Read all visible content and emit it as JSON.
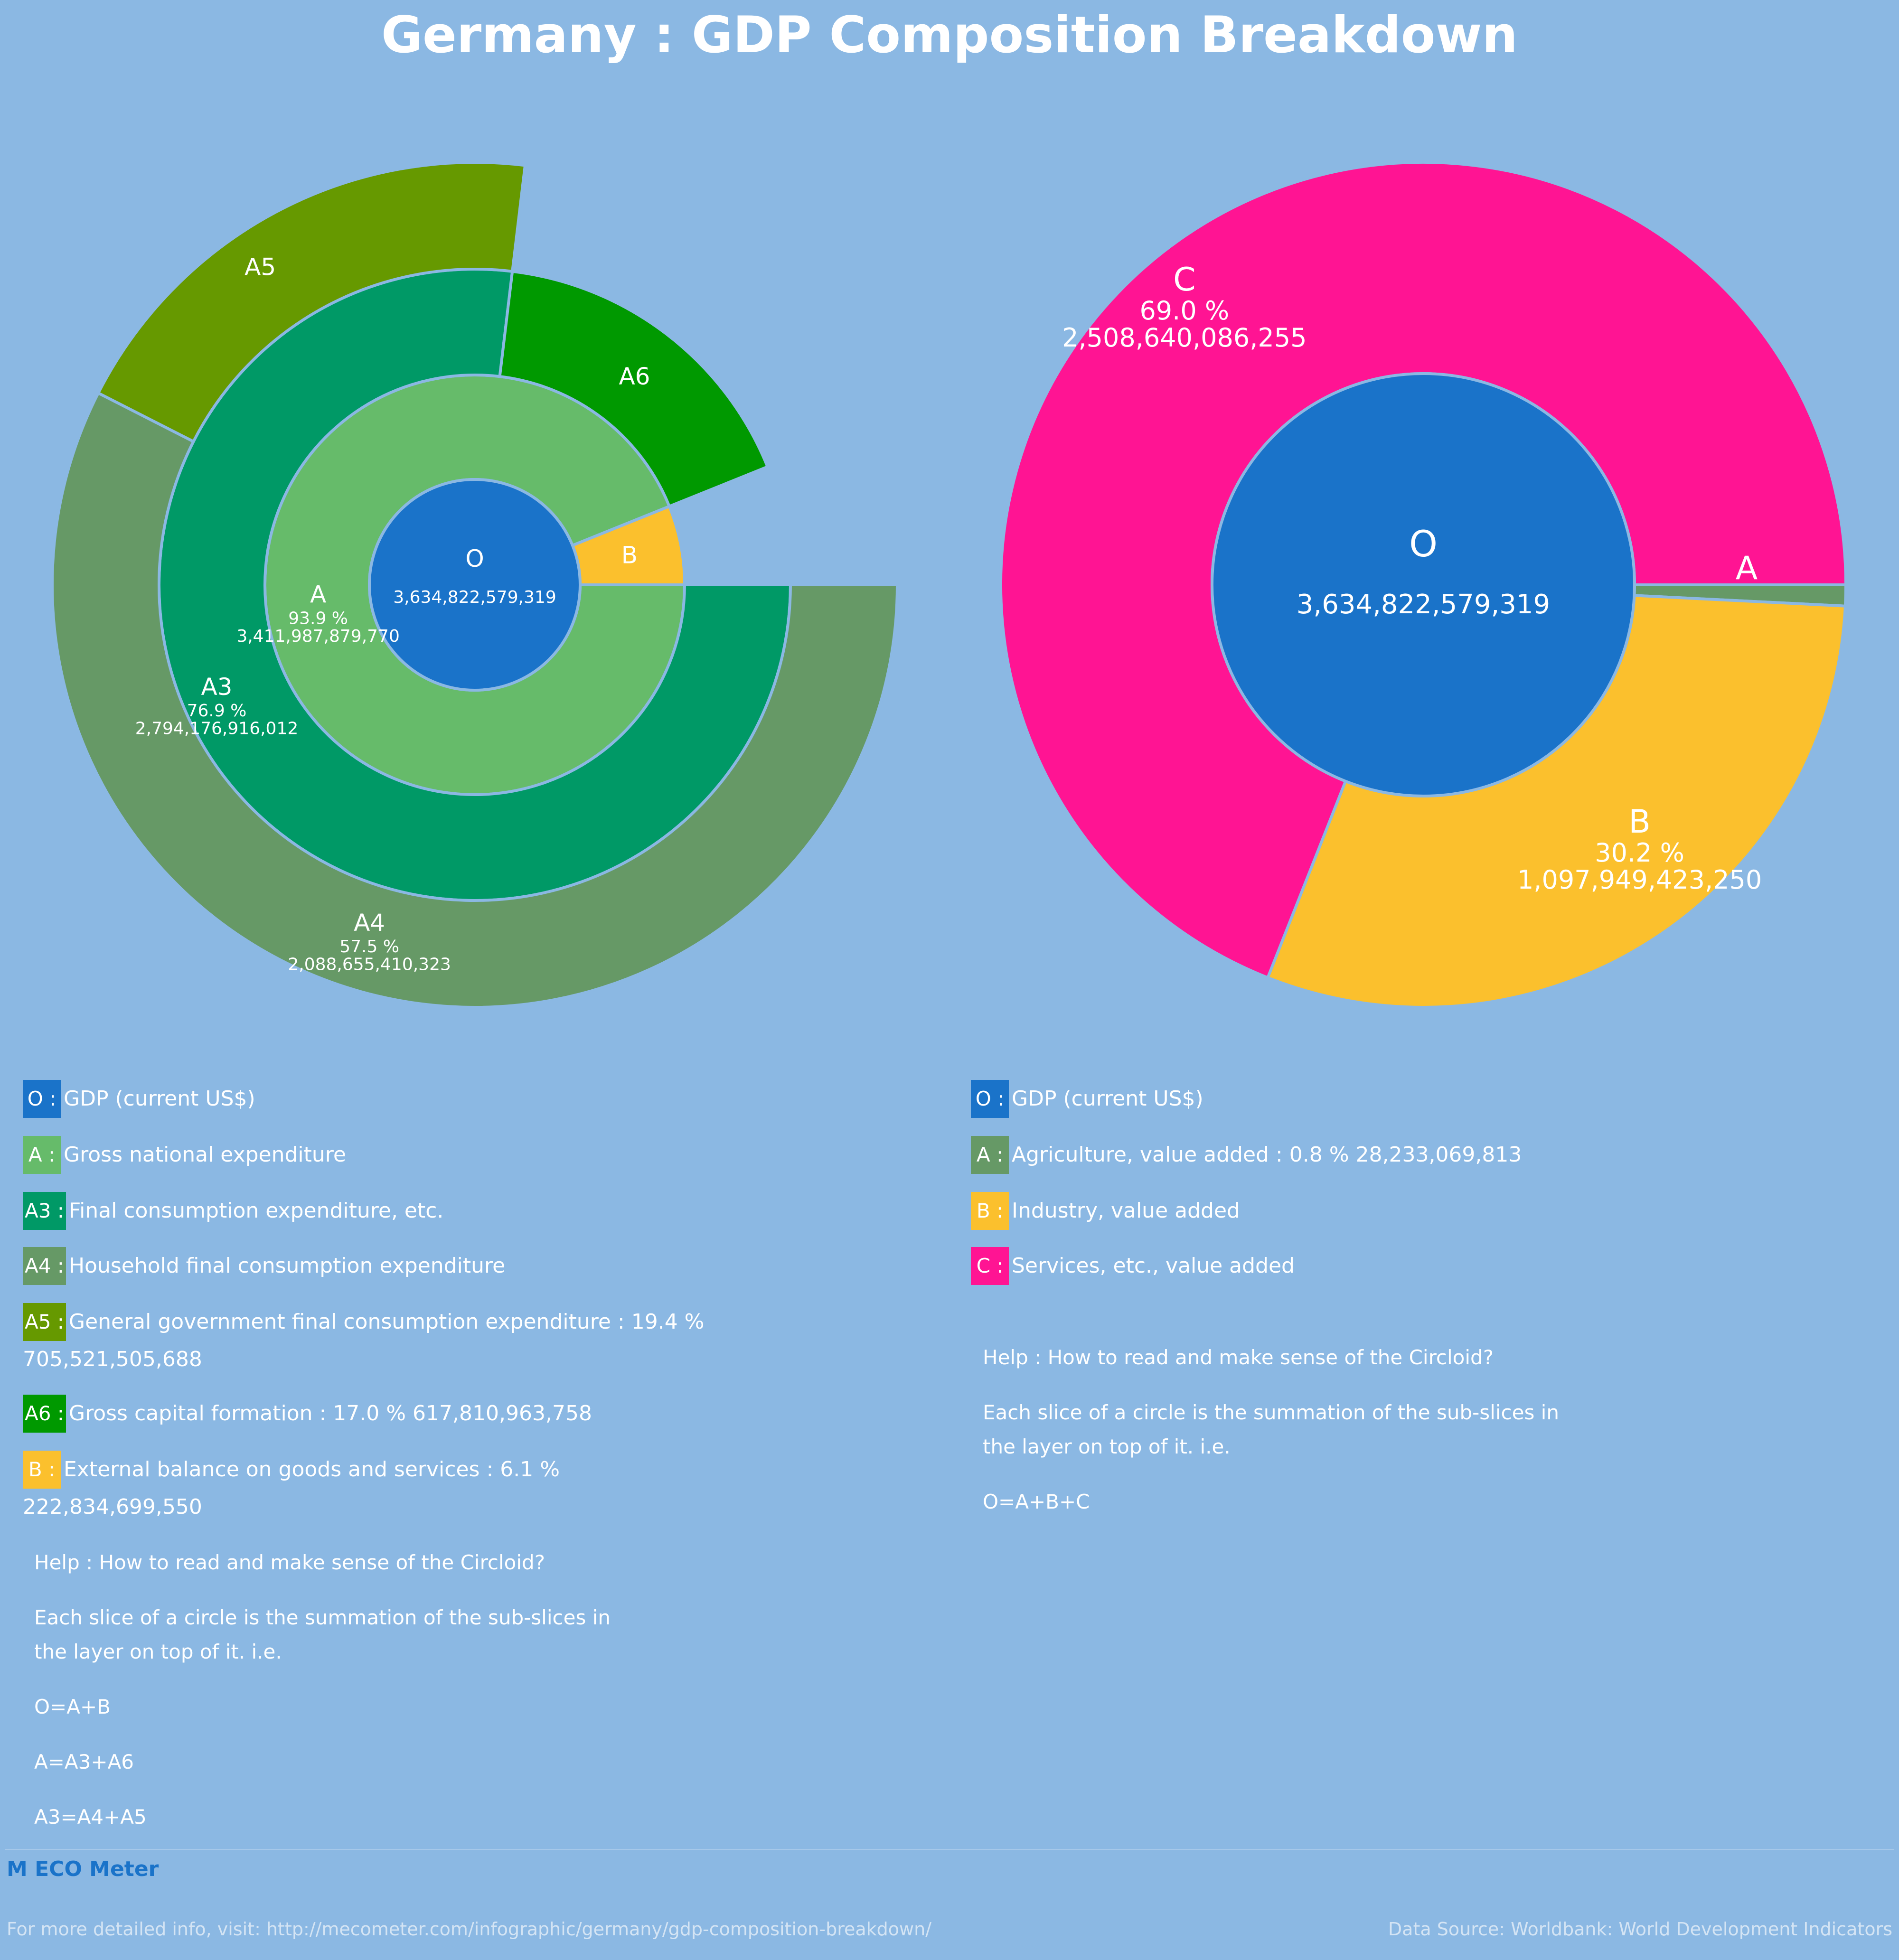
{
  "title": "Germany : GDP Composition Breakdown",
  "colors": {
    "background": "#8bb8e3",
    "O": "#1a73c9",
    "A_expenditure": "#66bb6a",
    "A3": "#009966",
    "A4": "#669966",
    "A5": "#669900",
    "A6": "#009900",
    "B_balance": "#fbc02d",
    "A_agriculture": "#669966",
    "B_industry": "#fbc02d",
    "C_services": "#ff1493"
  },
  "chart_data": [
    {
      "type": "pie",
      "subtype": "circloid",
      "total": {
        "label": "O",
        "value": 3634822579319,
        "value_text": "3,634,822,579,319"
      },
      "slices": [
        {
          "id": "A",
          "parent": "O",
          "layer": 1,
          "share": 0.939,
          "value": 3411987879770,
          "label": "A",
          "percent_text": "93.9 %",
          "value_text": "3,411,987,879,770"
        },
        {
          "id": "B",
          "parent": "O",
          "layer": 1,
          "share": 0.061,
          "value": 222834699550,
          "label": "B"
        },
        {
          "id": "A3",
          "parent": "A",
          "layer": 2,
          "share": 0.769,
          "value": 2794176916012,
          "label": "A3",
          "percent_text": "76.9 %",
          "value_text": "2,794,176,916,012"
        },
        {
          "id": "A6",
          "parent": "A",
          "layer": 2,
          "share": 0.17,
          "value": 617810963758,
          "label": "A6"
        },
        {
          "id": "A4",
          "parent": "A3",
          "layer": 3,
          "share": 0.575,
          "value": 2088655410323,
          "label": "A4",
          "percent_text": "57.5 %",
          "value_text": "2,088,655,410,323"
        },
        {
          "id": "A5",
          "parent": "A3",
          "layer": 3,
          "share": 0.194,
          "value": 705521505688,
          "label": "A5"
        }
      ]
    },
    {
      "type": "pie",
      "subtype": "circloid",
      "total": {
        "label": "O",
        "value": 3634822579319,
        "value_text": "3,634,822,579,319"
      },
      "slices": [
        {
          "id": "A",
          "parent": "O",
          "layer": 1,
          "share": 0.008,
          "value": 28233069813,
          "label": "A"
        },
        {
          "id": "B",
          "parent": "O",
          "layer": 1,
          "share": 0.302,
          "value": 1097949423250,
          "label": "B",
          "percent_text": "30.2 %",
          "value_text": "1,097,949,423,250"
        },
        {
          "id": "C",
          "parent": "O",
          "layer": 1,
          "share": 0.69,
          "value": 2508640086255,
          "label": "C",
          "percent_text": "69.0 %",
          "value_text": "2,508,640,086,255"
        }
      ]
    }
  ],
  "legend_left": [
    {
      "key": "O",
      "sep": " : ",
      "text": "GDP (current US$)"
    },
    {
      "key": "A",
      "sep": " : ",
      "text": "Gross national expenditure"
    },
    {
      "key": "A3",
      "sep": " : ",
      "text": "Final consumption expenditure, etc."
    },
    {
      "key": "A4",
      "sep": " : ",
      "text": "Household final consumption expenditure"
    },
    {
      "key": "A5",
      "sep": " : ",
      "text": "General government final consumption expenditure : 19.4 %  705,521,505,688"
    },
    {
      "key": "A6",
      "sep": " : ",
      "text": "Gross capital formation : 17.0 %  617,810,963,758"
    },
    {
      "key": "B",
      "sep": " : ",
      "text": "External balance on goods and services : 6.1 %  222,834,699,550"
    }
  ],
  "legend_right": [
    {
      "key": "O",
      "sep": " : ",
      "text": "GDP (current US$)"
    },
    {
      "key": "A",
      "sep": " : ",
      "text": "Agriculture, value added : 0.8 %  28,233,069,813"
    },
    {
      "key": "B",
      "sep": " : ",
      "text": "Industry, value added"
    },
    {
      "key": "C",
      "sep": " : ",
      "text": "Services, etc., value added"
    }
  ],
  "help_left": {
    "heading": "Help : How to read and make sense of the Circloid?",
    "body": [
      "Each slice of a circle is the summation of the sub-slices in",
      "the layer on top of it. i.e."
    ],
    "formulas": [
      "O=A+B",
      "A=A3+A6",
      "A3=A4+A5"
    ]
  },
  "help_right": {
    "heading": "Help : How to read and make sense of the Circloid?",
    "body": [
      "Each slice of a circle is the summation of the sub-slices in",
      "the layer on top of it. i.e."
    ],
    "formulas": [
      "O=A+B+C"
    ]
  },
  "footer": {
    "logo": "M ECO Meter",
    "left": "For more detailed info, visit: http://mecometer.com/infographic/germany/gdp-composition-breakdown/",
    "right": "Data Source: Worldbank: World Development Indicators"
  }
}
